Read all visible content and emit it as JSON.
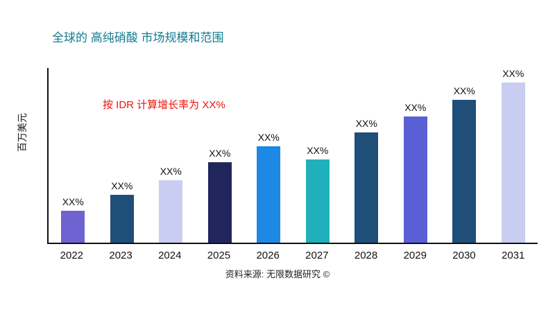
{
  "page": {
    "title": "全球的 高纯硝酸 市场规模和范围",
    "annotation": "按 IDR 计算增长率为 XX%",
    "source": "资料来源: 无限数据研究 ©"
  },
  "style": {
    "title_color": "#137a8f",
    "annotation_color": "#ed1309",
    "axis_color": "#111111"
  },
  "chart_data": {
    "type": "bar",
    "title": "全球的 高纯硝酸 市场规模和范围",
    "xlabel": "",
    "ylabel": "百万美元",
    "categories": [
      "2022",
      "2023",
      "2024",
      "2025",
      "2026",
      "2027",
      "2028",
      "2029",
      "2030",
      "2031"
    ],
    "values": [
      20,
      30,
      39,
      50,
      60,
      52,
      69,
      79,
      89,
      100
    ],
    "bar_labels": [
      "XX%",
      "XX%",
      "XX%",
      "XX%",
      "XX%",
      "XX%",
      "XX%",
      "XX%",
      "XX%",
      "XX%"
    ],
    "colors": [
      "#6f63d2",
      "#1f4e79",
      "#c9cdf2",
      "#20265c",
      "#1e88e5",
      "#1fb0bc",
      "#1f4e79",
      "#5b5fd6",
      "#1f4e79",
      "#c9cdf2"
    ],
    "ylim": [
      0,
      100
    ],
    "grid": false,
    "legend": false,
    "annotation": "按 IDR 计算增长率为 XX%"
  }
}
